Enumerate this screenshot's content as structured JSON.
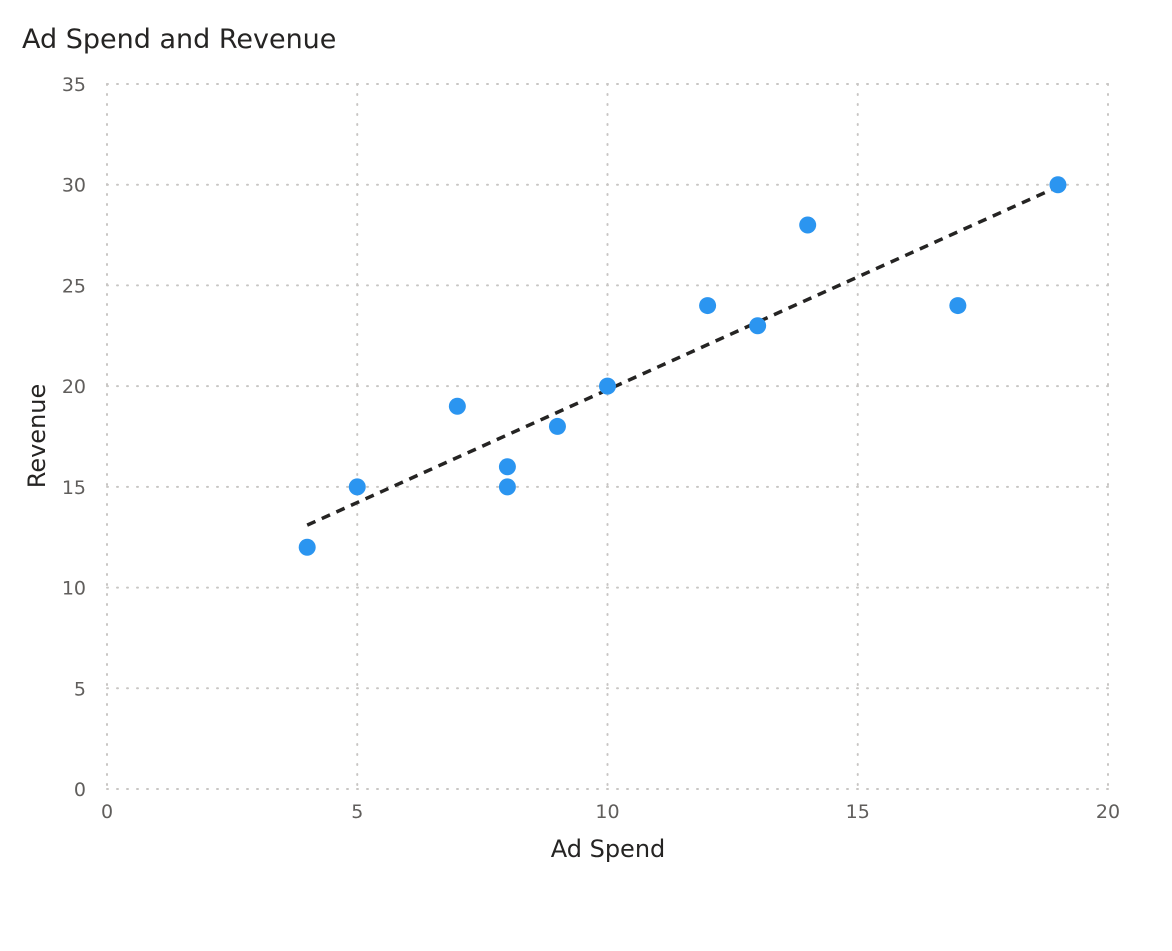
{
  "chart_data": {
    "type": "scatter",
    "title": "Ad Spend and Revenue",
    "xlabel": "Ad Spend",
    "ylabel": "Revenue",
    "xlim": [
      0,
      20
    ],
    "ylim": [
      0,
      35
    ],
    "x_ticks": [
      0,
      5,
      10,
      15,
      20
    ],
    "y_ticks": [
      0,
      5,
      10,
      15,
      20,
      25,
      30,
      35
    ],
    "grid": true,
    "points": [
      {
        "x": 4,
        "y": 12
      },
      {
        "x": 5,
        "y": 15
      },
      {
        "x": 7,
        "y": 19
      },
      {
        "x": 8,
        "y": 16
      },
      {
        "x": 8,
        "y": 15
      },
      {
        "x": 9,
        "y": 18
      },
      {
        "x": 10,
        "y": 20
      },
      {
        "x": 12,
        "y": 24
      },
      {
        "x": 13,
        "y": 23
      },
      {
        "x": 14,
        "y": 28
      },
      {
        "x": 17,
        "y": 24
      },
      {
        "x": 19,
        "y": 30
      }
    ],
    "trendline": {
      "style": "dashed",
      "x": [
        4,
        19
      ],
      "y": [
        13.1,
        29.9
      ]
    },
    "colors": {
      "point": "#2b95f0",
      "trendline": "#252423",
      "grid": "#c8c6c4",
      "text": "#252423",
      "tick_text": "#605e5c"
    }
  }
}
